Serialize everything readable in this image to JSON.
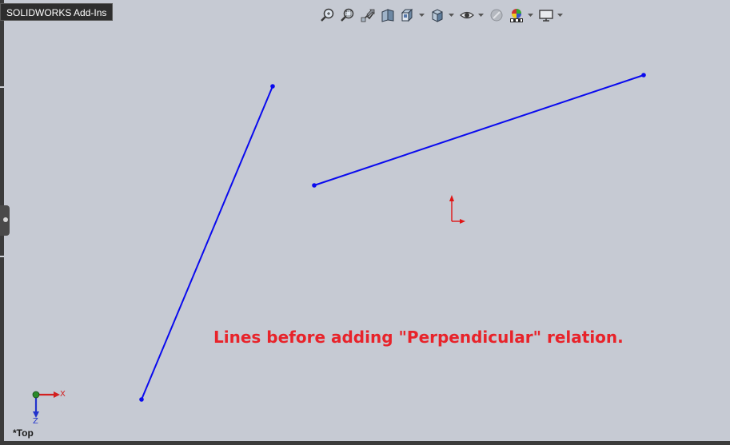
{
  "window": {
    "addins_tab_label": "SOLIDWORKS Add-Ins"
  },
  "toolbar": {
    "items": [
      {
        "icon": "zoom-to-fit-icon"
      },
      {
        "icon": "zoom-to-area-icon"
      },
      {
        "icon": "previous-view-icon"
      },
      {
        "icon": "section-view-icon"
      },
      {
        "icon": "view-orientation-icon",
        "has_dropdown": true
      },
      {
        "icon": "display-style-icon",
        "has_dropdown": true
      },
      {
        "icon": "hide-show-items-icon",
        "has_dropdown": true
      },
      {
        "icon": "edit-appearance-icon"
      },
      {
        "icon": "apply-scene-icon",
        "has_dropdown": true
      },
      {
        "icon": "view-settings-icon",
        "has_dropdown": true
      }
    ]
  },
  "sketch": {
    "line_color": "#0a0aee",
    "caption": "Lines before adding \"Perpendicular\" relation.",
    "caption_color": "#e8232a",
    "origin_color": "#e01515"
  },
  "triad": {
    "x_label": "X",
    "z_label": "Z",
    "x_color": "#d22020",
    "z_color": "#2233cc"
  },
  "view": {
    "orientation_label": "*Top"
  }
}
